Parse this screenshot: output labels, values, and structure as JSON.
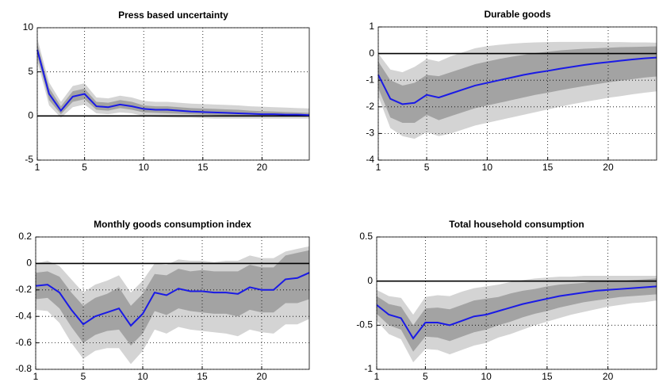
{
  "chart_data": [
    {
      "type": "line",
      "title": "Press based uncertainty",
      "x": [
        1,
        2,
        3,
        4,
        5,
        6,
        7,
        8,
        9,
        10,
        11,
        12,
        13,
        14,
        15,
        16,
        17,
        18,
        19,
        20,
        21,
        22,
        23,
        24
      ],
      "xlim": [
        1,
        24
      ],
      "xticks": [
        1,
        5,
        10,
        15,
        20
      ],
      "ylim": [
        -5,
        10
      ],
      "yticks": [
        -5,
        0,
        5,
        10
      ],
      "grid": true,
      "reference_line": 0,
      "bands": [
        {
          "color": "#d4d4d4",
          "lower": [
            6.2,
            1.2,
            -0.2,
            1.0,
            1.3,
            0.3,
            0.2,
            0.4,
            0.3,
            0.0,
            -0.1,
            -0.15,
            -0.2,
            -0.2,
            -0.25,
            -0.3,
            -0.3,
            -0.3,
            -0.3,
            -0.3,
            -0.3,
            -0.3,
            -0.3,
            -0.3
          ],
          "upper": [
            8.8,
            3.8,
            1.6,
            3.4,
            3.7,
            2.1,
            2.0,
            2.3,
            2.1,
            1.7,
            1.6,
            1.6,
            1.5,
            1.4,
            1.35,
            1.3,
            1.25,
            1.2,
            1.1,
            1.05,
            1.0,
            0.95,
            0.9,
            0.85
          ]
        },
        {
          "color": "#a3a3a3",
          "lower": [
            6.8,
            1.8,
            0.2,
            1.6,
            1.9,
            0.7,
            0.6,
            0.9,
            0.7,
            0.4,
            0.35,
            0.3,
            0.25,
            0.2,
            0.15,
            0.1,
            0.08,
            0.05,
            0.03,
            0.0,
            0,
            -0.02,
            -0.02,
            -0.05
          ],
          "upper": [
            8.2,
            3.2,
            1.1,
            2.8,
            3.1,
            1.6,
            1.5,
            1.8,
            1.6,
            1.2,
            1.1,
            1.1,
            1.0,
            0.9,
            0.85,
            0.8,
            0.75,
            0.7,
            0.6,
            0.55,
            0.5,
            0.45,
            0.4,
            0.35
          ]
        }
      ],
      "series": [
        {
          "color": "#1a1ae6",
          "values": [
            7.5,
            2.5,
            0.6,
            2.2,
            2.5,
            1.1,
            1.0,
            1.3,
            1.1,
            0.8,
            0.7,
            0.7,
            0.6,
            0.5,
            0.45,
            0.4,
            0.35,
            0.3,
            0.25,
            0.2,
            0.2,
            0.15,
            0.15,
            0.1
          ]
        }
      ]
    },
    {
      "type": "line",
      "title": "Durable goods",
      "x": [
        1,
        2,
        3,
        4,
        5,
        6,
        7,
        8,
        9,
        10,
        11,
        12,
        13,
        14,
        15,
        16,
        17,
        18,
        19,
        20,
        21,
        22,
        23,
        24
      ],
      "xlim": [
        1,
        24
      ],
      "xticks": [
        1,
        5,
        10,
        15,
        20
      ],
      "ylim": [
        -4,
        1
      ],
      "yticks": [
        -4,
        -3,
        -2,
        -1,
        0,
        1
      ],
      "grid": true,
      "reference_line": 0,
      "bands": [
        {
          "color": "#d4d4d4",
          "lower": [
            -1.6,
            -2.8,
            -3.1,
            -3.2,
            -2.95,
            -3.1,
            -3.0,
            -2.85,
            -2.7,
            -2.6,
            -2.5,
            -2.4,
            -2.3,
            -2.2,
            -2.1,
            -2.0,
            -1.9,
            -1.82,
            -1.74,
            -1.66,
            -1.6,
            -1.53,
            -1.47,
            -1.42
          ],
          "upper": [
            0.0,
            -0.6,
            -0.7,
            -0.5,
            -0.2,
            -0.3,
            -0.1,
            0.05,
            0.2,
            0.28,
            0.33,
            0.37,
            0.4,
            0.42,
            0.43,
            0.44,
            0.44,
            0.44,
            0.44,
            0.43,
            0.43,
            0.42,
            0.42,
            0.41
          ]
        },
        {
          "color": "#a3a3a3",
          "lower": [
            -1.3,
            -2.4,
            -2.6,
            -2.6,
            -2.3,
            -2.5,
            -2.35,
            -2.2,
            -2.05,
            -1.95,
            -1.85,
            -1.75,
            -1.65,
            -1.55,
            -1.47,
            -1.38,
            -1.3,
            -1.22,
            -1.15,
            -1.08,
            -1.02,
            -0.96,
            -0.9,
            -0.86
          ],
          "upper": [
            -0.3,
            -1.0,
            -1.2,
            -1.1,
            -0.8,
            -0.85,
            -0.7,
            -0.55,
            -0.4,
            -0.3,
            -0.2,
            -0.12,
            -0.05,
            0.02,
            0.07,
            0.12,
            0.15,
            0.18,
            0.2,
            0.22,
            0.24,
            0.25,
            0.26,
            0.27
          ]
        }
      ],
      "series": [
        {
          "color": "#1a1ae6",
          "values": [
            -0.8,
            -1.7,
            -1.9,
            -1.85,
            -1.55,
            -1.65,
            -1.5,
            -1.35,
            -1.2,
            -1.1,
            -1.0,
            -0.9,
            -0.8,
            -0.72,
            -0.65,
            -0.57,
            -0.5,
            -0.43,
            -0.37,
            -0.32,
            -0.27,
            -0.22,
            -0.18,
            -0.15
          ]
        }
      ]
    },
    {
      "type": "line",
      "title": "Monthly goods consumption index",
      "x": [
        1,
        2,
        3,
        4,
        5,
        6,
        7,
        8,
        9,
        10,
        11,
        12,
        13,
        14,
        15,
        16,
        17,
        18,
        19,
        20,
        21,
        22,
        23,
        24
      ],
      "xlim": [
        1,
        24
      ],
      "xticks": [
        1,
        5,
        10,
        15,
        20
      ],
      "ylim": [
        -0.8,
        0.2
      ],
      "yticks": [
        -0.8,
        -0.6,
        -0.4,
        -0.2,
        0,
        0.2
      ],
      "grid": true,
      "reference_line": 0,
      "bands": [
        {
          "color": "#d4d4d4",
          "lower": [
            -0.35,
            -0.36,
            -0.45,
            -0.6,
            -0.72,
            -0.66,
            -0.64,
            -0.64,
            -0.76,
            -0.66,
            -0.5,
            -0.53,
            -0.48,
            -0.5,
            -0.51,
            -0.52,
            -0.53,
            -0.55,
            -0.5,
            -0.52,
            -0.53,
            -0.46,
            -0.46,
            -0.42
          ],
          "upper": [
            0.0,
            0.02,
            -0.02,
            -0.12,
            -0.22,
            -0.16,
            -0.13,
            -0.09,
            -0.22,
            -0.13,
            0.0,
            -0.01,
            0.03,
            0.02,
            0.02,
            0.01,
            0.02,
            0.02,
            0.06,
            0.04,
            0.04,
            0.09,
            0.11,
            0.13
          ]
        },
        {
          "color": "#a3a3a3",
          "lower": [
            -0.27,
            -0.26,
            -0.34,
            -0.48,
            -0.6,
            -0.54,
            -0.51,
            -0.5,
            -0.62,
            -0.53,
            -0.36,
            -0.39,
            -0.34,
            -0.36,
            -0.37,
            -0.38,
            -0.38,
            -0.4,
            -0.35,
            -0.37,
            -0.37,
            -0.3,
            -0.3,
            -0.27
          ],
          "upper": [
            -0.07,
            -0.06,
            -0.1,
            -0.22,
            -0.32,
            -0.26,
            -0.23,
            -0.18,
            -0.32,
            -0.23,
            -0.08,
            -0.09,
            -0.04,
            -0.06,
            -0.05,
            -0.06,
            -0.06,
            -0.06,
            -0.01,
            -0.03,
            -0.03,
            0.06,
            0.08,
            0.1
          ]
        }
      ],
      "series": [
        {
          "color": "#1a1ae6",
          "values": [
            -0.17,
            -0.16,
            -0.22,
            -0.35,
            -0.46,
            -0.4,
            -0.37,
            -0.34,
            -0.47,
            -0.38,
            -0.22,
            -0.24,
            -0.19,
            -0.21,
            -0.21,
            -0.22,
            -0.22,
            -0.23,
            -0.18,
            -0.2,
            -0.2,
            -0.12,
            -0.11,
            -0.07
          ]
        }
      ]
    },
    {
      "type": "line",
      "title": "Total household consumption",
      "x": [
        1,
        2,
        3,
        4,
        5,
        6,
        7,
        8,
        9,
        10,
        11,
        12,
        13,
        14,
        15,
        16,
        17,
        18,
        19,
        20,
        21,
        22,
        23,
        24
      ],
      "xlim": [
        1,
        24
      ],
      "xticks": [
        1,
        5,
        10,
        15,
        20
      ],
      "ylim": [
        -1,
        0.5
      ],
      "yticks": [
        -1,
        -0.5,
        0,
        0.5
      ],
      "grid": true,
      "reference_line": 0,
      "bands": [
        {
          "color": "#d4d4d4",
          "lower": [
            -0.45,
            -0.6,
            -0.66,
            -0.92,
            -0.77,
            -0.78,
            -0.83,
            -0.78,
            -0.73,
            -0.7,
            -0.64,
            -0.6,
            -0.55,
            -0.5,
            -0.46,
            -0.42,
            -0.38,
            -0.35,
            -0.32,
            -0.29,
            -0.27,
            -0.25,
            -0.24,
            -0.22
          ],
          "upper": [
            -0.1,
            -0.17,
            -0.19,
            -0.38,
            -0.18,
            -0.16,
            -0.17,
            -0.12,
            -0.08,
            -0.06,
            -0.04,
            -0.01,
            0.01,
            0.03,
            0.04,
            0.05,
            0.05,
            0.06,
            0.06,
            0.06,
            0.06,
            0.06,
            0.06,
            0.06
          ]
        },
        {
          "color": "#a3a3a3",
          "lower": [
            -0.37,
            -0.5,
            -0.55,
            -0.8,
            -0.63,
            -0.64,
            -0.68,
            -0.63,
            -0.58,
            -0.55,
            -0.5,
            -0.46,
            -0.41,
            -0.37,
            -0.34,
            -0.3,
            -0.27,
            -0.24,
            -0.22,
            -0.2,
            -0.18,
            -0.17,
            -0.16,
            -0.15
          ],
          "upper": [
            -0.17,
            -0.26,
            -0.29,
            -0.5,
            -0.31,
            -0.3,
            -0.32,
            -0.27,
            -0.22,
            -0.2,
            -0.18,
            -0.14,
            -0.11,
            -0.09,
            -0.06,
            -0.04,
            -0.03,
            -0.02,
            0.0,
            0.0,
            0.0,
            0.01,
            0.02,
            0.03
          ]
        }
      ],
      "series": [
        {
          "color": "#1a1ae6",
          "values": [
            -0.27,
            -0.38,
            -0.42,
            -0.65,
            -0.47,
            -0.47,
            -0.5,
            -0.45,
            -0.4,
            -0.38,
            -0.34,
            -0.3,
            -0.26,
            -0.23,
            -0.2,
            -0.17,
            -0.15,
            -0.13,
            -0.11,
            -0.1,
            -0.09,
            -0.08,
            -0.07,
            -0.06
          ]
        }
      ]
    }
  ]
}
